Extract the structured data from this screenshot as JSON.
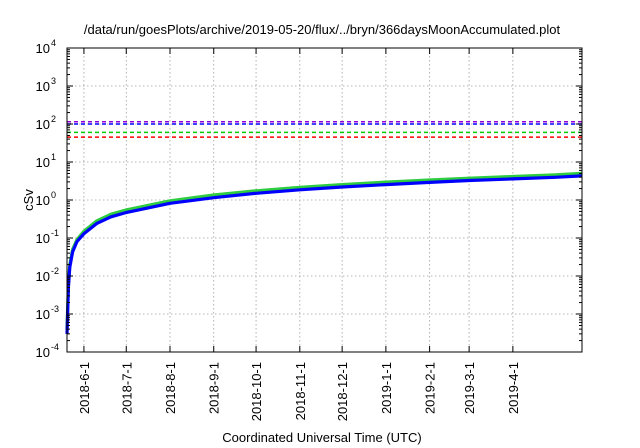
{
  "chart_data": {
    "type": "line",
    "title": "/data/run/goesPlots/archive/2019-05-20/flux/../bryn/366daysMoonAccumulated.plot",
    "xlabel": "Coordinated Universal Time (UTC)",
    "ylabel": "cSv",
    "y_scale": "log",
    "ylim": [
      "1e-4",
      "1e4"
    ],
    "xlim": [
      "2018-05-20",
      "2019-05-20"
    ],
    "grid": true,
    "x_ticks": [
      "2018-6-1",
      "2018-7-1",
      "2018-8-1",
      "2018-9-1",
      "2018-10-1",
      "2018-11-1",
      "2018-12-1",
      "2019-1-1",
      "2019-2-1",
      "2019-3-1",
      "2019-4-1"
    ],
    "x_tick_dates": [
      "2018-06-01",
      "2018-07-01",
      "2018-08-01",
      "2018-09-01",
      "2018-10-01",
      "2018-11-01",
      "2018-12-01",
      "2019-01-01",
      "2019-02-01",
      "2019-03-01",
      "2019-04-01"
    ],
    "y_ticks": [
      {
        "base": "10",
        "exp": "-4",
        "value": 0.0001
      },
      {
        "base": "10",
        "exp": "-3",
        "value": 0.001
      },
      {
        "base": "10",
        "exp": "-2",
        "value": 0.01
      },
      {
        "base": "10",
        "exp": "-1",
        "value": 0.1
      },
      {
        "base": "10",
        "exp": "0",
        "value": 1
      },
      {
        "base": "10",
        "exp": "1",
        "value": 10
      },
      {
        "base": "10",
        "exp": "2",
        "value": 100
      },
      {
        "base": "10",
        "exp": "3",
        "value": 1000
      },
      {
        "base": "10",
        "exp": "4",
        "value": 10000
      }
    ],
    "reference_lines": [
      {
        "value": 115,
        "color": "#9400d3",
        "style": "dashed"
      },
      {
        "value": 100,
        "color": "#0000ff",
        "style": "dashed"
      },
      {
        "value": 60,
        "color": "#00cc00",
        "style": "dashed"
      },
      {
        "value": 45,
        "color": "#ff0000",
        "style": "dashed"
      }
    ],
    "series": [
      {
        "color": "#2ecc40",
        "x": [
          "2018-05-20",
          "2018-05-21",
          "2018-05-22",
          "2018-05-24",
          "2018-05-27",
          "2018-06-01",
          "2018-06-10",
          "2018-06-20",
          "2018-07-01",
          "2018-08-01",
          "2018-09-01",
          "2018-10-01",
          "2018-11-01",
          "2018-12-01",
          "2019-01-01",
          "2019-02-01",
          "2019-03-01",
          "2019-04-01",
          "2019-05-01",
          "2019-05-20"
        ],
        "values": [
          0.0004,
          0.006,
          0.02,
          0.05,
          0.09,
          0.15,
          0.28,
          0.42,
          0.55,
          0.95,
          1.35,
          1.75,
          2.15,
          2.55,
          2.95,
          3.35,
          3.75,
          4.15,
          4.6,
          5.0
        ]
      },
      {
        "color": "#0000ff",
        "x": [
          "2018-05-20",
          "2018-05-21",
          "2018-05-22",
          "2018-05-24",
          "2018-05-27",
          "2018-06-01",
          "2018-06-10",
          "2018-06-20",
          "2018-07-01",
          "2018-08-01",
          "2018-09-01",
          "2018-10-01",
          "2018-11-01",
          "2018-12-01",
          "2019-01-01",
          "2019-02-01",
          "2019-03-01",
          "2019-04-01",
          "2019-05-01",
          "2019-05-20"
        ],
        "values": [
          0.0003,
          0.005,
          0.017,
          0.043,
          0.08,
          0.13,
          0.24,
          0.36,
          0.47,
          0.82,
          1.15,
          1.5,
          1.85,
          2.2,
          2.55,
          2.9,
          3.25,
          3.6,
          3.95,
          4.3
        ]
      }
    ]
  }
}
